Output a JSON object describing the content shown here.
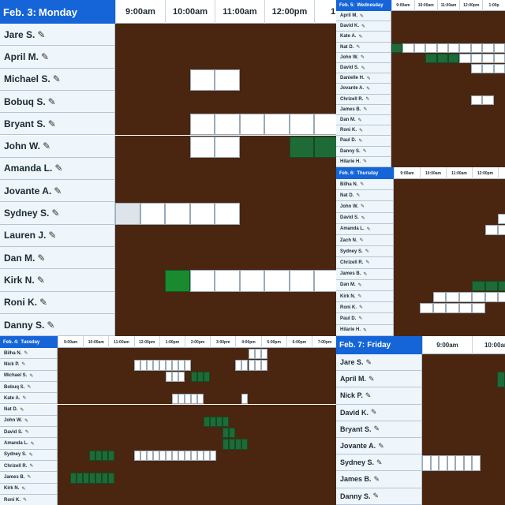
{
  "colors": {
    "header_blue": "#1565d8",
    "name_column_bg": "#eef5fb",
    "busy_brown": "#4a2611",
    "free_white": "#ffffff",
    "booked_green": "#1f6b38",
    "highlight_green": "#1a8a30",
    "disabled_gray": "#dde4ea"
  },
  "cell_legend": {
    "0": "busy",
    "1": "available",
    "2": "scheduled",
    "3": "disabled",
    "4": "selected"
  },
  "schedules": [
    {
      "id": "monday",
      "date": "Feb. 3:",
      "day": "Monday",
      "times": [
        "9:00am",
        "10:00am",
        "11:00am",
        "12:00pm",
        "1:00"
      ],
      "rows": [
        {
          "name": "Jare S.",
          "cells": "0000000000000000000"
        },
        {
          "name": "April M.",
          "cells": "0000000000222222000"
        },
        {
          "name": "Michael S.",
          "cells": "0001100000011110000"
        },
        {
          "name": "Bobuq S.",
          "cells": "0000000000000000000"
        },
        {
          "name": "Bryant S.",
          "cells": "0001111110000111000"
        },
        {
          "name": "John W.",
          "cells": "0001100222000000000"
        },
        {
          "name": "Amanda L.",
          "cells": "0000000000000000000"
        },
        {
          "name": "Jovante A.",
          "cells": "0000000000111100000"
        },
        {
          "name": "Sydney S.",
          "cells": "3111100000000000000"
        },
        {
          "name": "Lauren J.",
          "cells": "0000000000000211000"
        },
        {
          "name": "Dan M.",
          "cells": "0000000000000000000"
        },
        {
          "name": "Kirk N.",
          "cells": "0041111110000000200"
        },
        {
          "name": "Roni K.",
          "cells": "0000000000000000200"
        },
        {
          "name": "Danny S.",
          "cells": "0000000000002222100"
        }
      ]
    },
    {
      "id": "wednesday",
      "date": "Feb. 5:",
      "day": "Wednesday",
      "times": [
        "9:00am",
        "10:00am",
        "11:00am",
        "12:00pm",
        "1:00p"
      ],
      "rows": [
        {
          "name": "April M.",
          "cells": "000000000000000222"
        },
        {
          "name": "David K.",
          "cells": "000000000000000000"
        },
        {
          "name": "Kate A.",
          "cells": "000000000000000000"
        },
        {
          "name": "Nat D.",
          "cells": "211111111110000000"
        },
        {
          "name": "John W.",
          "cells": "000222111111111100"
        },
        {
          "name": "David S.",
          "cells": "000000011110000000"
        },
        {
          "name": "Danielle H.",
          "cells": "000000000000000000"
        },
        {
          "name": "Jovante A.",
          "cells": "000000000000000000"
        },
        {
          "name": "Chrizell R.",
          "cells": "000000011000000000"
        },
        {
          "name": "James B.",
          "cells": "000000000000000000"
        },
        {
          "name": "Dan M.",
          "cells": "000000000000000000"
        },
        {
          "name": "Roni K.",
          "cells": "000000000000000022"
        },
        {
          "name": "Paul D.",
          "cells": "000000000001100000"
        },
        {
          "name": "Danny S.",
          "cells": "000000000000000120"
        },
        {
          "name": "Hilarie H.",
          "cells": "000000000000000011"
        }
      ]
    },
    {
      "id": "thursday",
      "date": "Feb. 6:",
      "day": "Thursday",
      "times": [
        "9:00am",
        "10:00am",
        "11:00am",
        "12:00pm",
        "1:00p"
      ],
      "rows": [
        {
          "name": "Bilha N.",
          "cells": "000000000000000000"
        },
        {
          "name": "Nat D.",
          "cells": "000000000000000000"
        },
        {
          "name": "John W.",
          "cells": "000000000011112200"
        },
        {
          "name": "David S.",
          "cells": "000000001110000000"
        },
        {
          "name": "Amanda L.",
          "cells": "000000011111111000"
        },
        {
          "name": "Zach N.",
          "cells": "000000000000000000"
        },
        {
          "name": "Sydney S.",
          "cells": "000000000000000000"
        },
        {
          "name": "Chrizell R.",
          "cells": "000000000000000000"
        },
        {
          "name": "James B.",
          "cells": "000000000000000000"
        },
        {
          "name": "Dan M.",
          "cells": "000000222000000000"
        },
        {
          "name": "Kirk N.",
          "cells": "000111111111000000"
        },
        {
          "name": "Roni K.",
          "cells": "001111100000000000"
        },
        {
          "name": "Paul D.",
          "cells": "000000000111110000"
        },
        {
          "name": "Hilarie H.",
          "cells": "000000000000000000"
        }
      ]
    },
    {
      "id": "tuesday",
      "date": "Feb. 4:",
      "day": "Tuesday",
      "times": [
        "9:00am",
        "10:00am",
        "11:00am",
        "12:00pm",
        "1:00pm",
        "2:00pm",
        "3:00pm",
        "4:00pm",
        "5:00pm",
        "6:00pm",
        "7:00pm"
      ],
      "rows": [
        {
          "name": "Bilha N.",
          "cells": "0000000000000000000000000000000000000000000000"
        },
        {
          "name": "Nick P.",
          "cells": "0000000000000000000000000000000000000000000000"
        },
        {
          "name": "Michael S.",
          "cells": "0000000000000000000000000000000000000000000000"
        },
        {
          "name": "Bobuq S.",
          "cells": "0000000000000000000000000000000000000000000000"
        },
        {
          "name": "Kate A.",
          "cells": "0000000000000000000000000000000000000000000000"
        },
        {
          "name": "Nat D.",
          "cells": "0000000000000000000000000000000000000000000000"
        },
        {
          "name": "John W.",
          "cells": "0000000000000000000000000000000000000000000000"
        },
        {
          "name": "David S.",
          "cells": "0000000000000000000000000000000000000000000000"
        },
        {
          "name": "Amanda L.",
          "cells": "0000000000000000000000000000000000000000000000"
        },
        {
          "name": "Sydney S.",
          "cells": "0000000000000000000000000000000000000000000000"
        },
        {
          "name": "Chrizell R.",
          "cells": "0000000000000000000000000000000000000000000000"
        },
        {
          "name": "James B.",
          "cells": "0000000000000000000000000000000000000000000000"
        },
        {
          "name": "Kirk N.",
          "cells": "0000000000000000000000000000000000000000000000"
        },
        {
          "name": "Roni K.",
          "cells": "0000000000000000000000000000000000000000000000"
        }
      ]
    },
    {
      "id": "friday",
      "date": "Feb. 7:",
      "day": "Friday",
      "times": [
        "9:00am",
        "10:00am"
      ],
      "rows": [
        {
          "name": "Jare S.",
          "cells": "000000000022"
        },
        {
          "name": "April M.",
          "cells": "000000000222"
        },
        {
          "name": "Nick P.",
          "cells": "000000000000"
        },
        {
          "name": "David K.",
          "cells": "000000000000"
        },
        {
          "name": "Bryant S.",
          "cells": "000000000000"
        },
        {
          "name": "Jovante A.",
          "cells": "000000000000"
        },
        {
          "name": "Sydney S.",
          "cells": "111111100000"
        },
        {
          "name": "James B.",
          "cells": "000000000000"
        },
        {
          "name": "Danny S.",
          "cells": "000000000000"
        }
      ]
    }
  ]
}
